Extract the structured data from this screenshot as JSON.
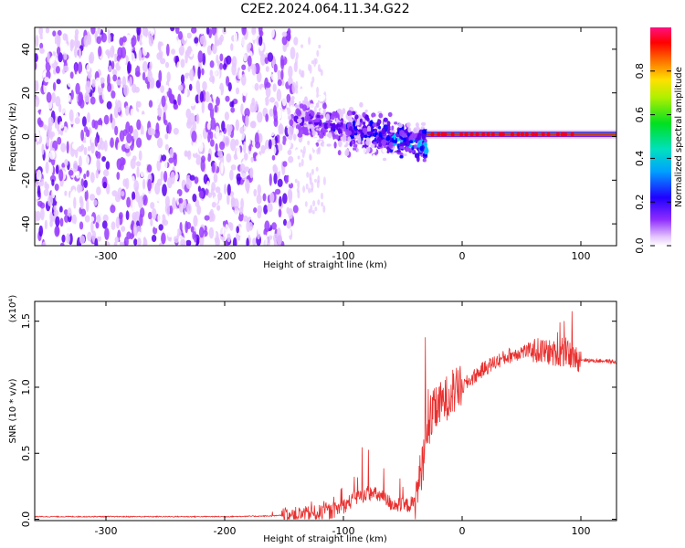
{
  "title": "C2E2.2024.064.11.34.G22",
  "colors": {
    "snr_line": "#e8302f",
    "spectrum_palette": [
      "#ffffff",
      "#e6c8ff",
      "#9b40ff",
      "#5a00f0",
      "#0000ff",
      "#00c8ff",
      "#00e060",
      "#f0e000",
      "#ff7000",
      "#ff0000",
      "#ff1090"
    ]
  },
  "chart_data": [
    {
      "type": "heatmap",
      "xlabel": "Height of straight line (km)",
      "ylabel": "Frequency (Hz)",
      "xlim": [
        -360,
        130
      ],
      "ylim": [
        -50,
        50
      ],
      "xticks": [
        -300,
        -200,
        -100,
        0,
        100
      ],
      "yticks": [
        -40,
        -20,
        0,
        20,
        40
      ],
      "grid": false,
      "colorbar": {
        "label": "Normalized spectral amplitude",
        "range": [
          0.0,
          1.0
        ],
        "ticks": [
          "0.0",
          "0.2",
          "0.4",
          "0.6",
          "0.8"
        ]
      },
      "regions": [
        {
          "x_range": [
            -360,
            -140
          ],
          "frequency_spread_hz": [
            -50,
            50
          ],
          "amplitude": 0.1
        },
        {
          "x_range": [
            -140,
            -30
          ],
          "center_hz_start": 8,
          "center_hz_end": -3,
          "amplitude_start": 0.25,
          "amplitude_end": 0.45
        },
        {
          "x_range": [
            -30,
            130
          ],
          "center_hz": 1,
          "amplitude": 0.9
        }
      ]
    },
    {
      "type": "line",
      "xlabel": "Height of straight line (km)",
      "ylabel": "SNR (10 * v/v)",
      "y_multiplier": "(x10⁴)",
      "xlim": [
        -360,
        130
      ],
      "ylim": [
        -0.01,
        1.65
      ],
      "xticks": [
        -300,
        -200,
        -100,
        0,
        100
      ],
      "yticks": [
        "0.0",
        "0.5",
        "1.0",
        "1.5"
      ],
      "grid": false,
      "series": [
        {
          "x": [
            -360,
            -300,
            -250,
            -200,
            -160,
            -130,
            -110,
            -100,
            -90,
            -80,
            -70,
            -60,
            -50,
            -40,
            -35,
            -30,
            -25,
            -20,
            -15,
            -10,
            0,
            10,
            20,
            30,
            40,
            50,
            60,
            70,
            80,
            90,
            95,
            100,
            110,
            120,
            130
          ],
          "y": [
            0.02,
            0.02,
            0.02,
            0.02,
            0.025,
            0.04,
            0.06,
            0.1,
            0.16,
            0.2,
            0.18,
            0.12,
            0.1,
            0.12,
            0.35,
            0.6,
            0.8,
            0.85,
            0.9,
            0.95,
            1.0,
            1.08,
            1.15,
            1.2,
            1.24,
            1.27,
            1.28,
            1.27,
            1.25,
            1.25,
            1.22,
            1.21,
            1.2,
            1.2,
            1.19
          ]
        }
      ]
    }
  ]
}
